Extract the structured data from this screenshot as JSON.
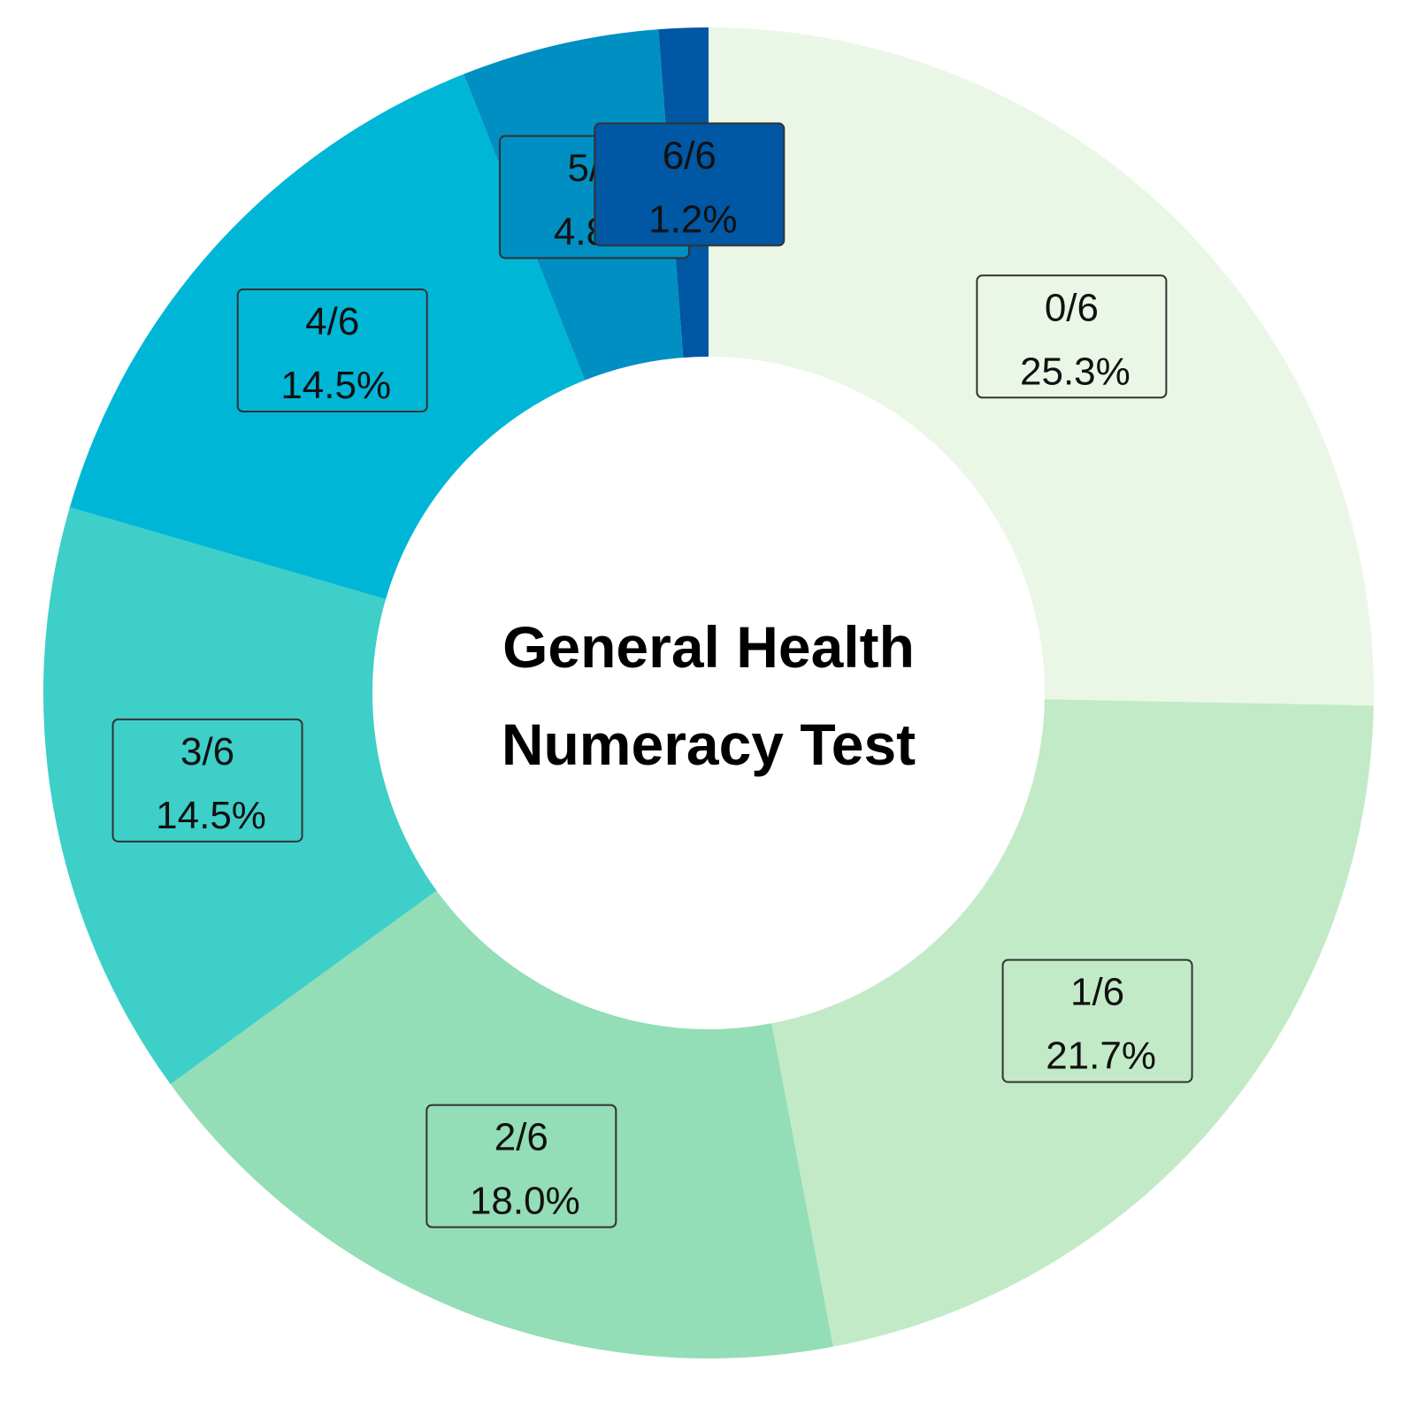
{
  "chart_data": {
    "type": "pie",
    "donut": true,
    "title_lines": [
      "General Health",
      "Numeracy Test"
    ],
    "slices": [
      {
        "category": "0/6",
        "value": 25.3,
        "label": "25.3%",
        "color": "#eaf7e6"
      },
      {
        "category": "1/6",
        "value": 21.7,
        "label": "21.7%",
        "color": "#c2eac7"
      },
      {
        "category": "2/6",
        "value": 18.0,
        "label": "18.0%",
        "color": "#93ddb7"
      },
      {
        "category": "3/6",
        "value": 14.5,
        "label": "14.5%",
        "color": "#3ecfc8"
      },
      {
        "category": "4/6",
        "value": 14.5,
        "label": "14.5%",
        "color": "#00b6d6"
      },
      {
        "category": "5/6",
        "value": 4.8,
        "label": "4.8%",
        "color": "#008fc3"
      },
      {
        "category": "6/6",
        "value": 1.2,
        "label": "1.2%",
        "color": "#0057a3"
      }
    ],
    "legend": "none",
    "start": "top",
    "direction": "clockwise"
  }
}
